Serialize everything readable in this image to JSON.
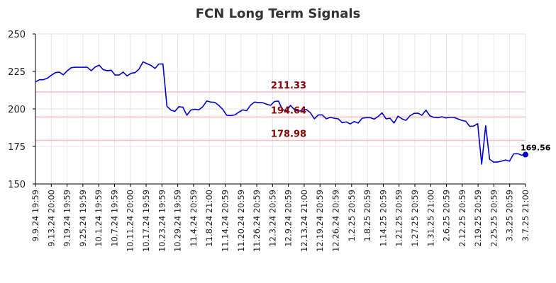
{
  "chart_data": {
    "type": "line",
    "title": "FCN Long Term Signals",
    "xlabel": "",
    "ylabel": "",
    "ylim": [
      150,
      250
    ],
    "yticks": [
      150,
      175,
      200,
      225,
      250
    ],
    "grid": true,
    "x_tick_labels": [
      "9.9.24 19:59",
      "9.13.24 20:00",
      "9.19.24 19:59",
      "9.25.24 19:59",
      "10.1.24 19:59",
      "10.7.24 19:59",
      "10.11.24 20:00",
      "10.17.24 19:59",
      "10.23.24 19:59",
      "10.29.24 19:59",
      "11.4.24 20:59",
      "11.8.24 21:00",
      "11.14.24 20:59",
      "11.20.24 20:59",
      "11.26.24 20:59",
      "12.3.24 20:59",
      "12.9.24 20:59",
      "12.13.24 21:00",
      "12.19.24 20:59",
      "12.26.24 20:59",
      "1.2.25 20:59",
      "1.8.25 20:59",
      "1.14.25 20:59",
      "1.21.25 20:59",
      "1.27.25 20:59",
      "1.31.25 21:00",
      "2.6.25 20:59",
      "2.12.25 20:59",
      "2.19.25 20:59",
      "2.25.25 20:59",
      "3.3.25 20:59",
      "3.7.25 21:00"
    ],
    "series": [
      {
        "color": "#0000cc",
        "values": [
          218,
          219.5,
          219.5,
          220.5,
          222.5,
          224.2,
          224.5,
          222.8,
          225.5,
          227.5,
          227.8,
          227.8,
          227.8,
          227.8,
          225.5,
          228,
          229.2,
          226.2,
          225.5,
          225.8,
          222.6,
          222.6,
          224.6,
          222,
          223.8,
          224.2,
          226.6,
          231.4,
          230.2,
          229,
          227,
          230,
          230,
          201.8,
          199.2,
          198.4,
          201.5,
          201.2,
          195.8,
          199.3,
          199.8,
          199.4,
          201.5,
          205.3,
          204.6,
          204.4,
          202.4,
          199.8,
          195.8,
          195.6,
          196,
          197.8,
          199.4,
          198.8,
          202.6,
          204.6,
          204.2,
          204.2,
          203.2,
          202.4,
          205,
          205.2,
          199.6,
          198.6,
          202.4,
          199.6,
          198.4,
          199.2,
          199.6,
          197.5,
          193.4,
          196,
          196,
          193.4,
          194.4,
          193.8,
          193.4,
          190.8,
          191.4,
          190,
          191.6,
          190.6,
          193.8,
          194.2,
          194.2,
          193.2,
          195,
          197.4,
          193.4,
          193.8,
          190.6,
          195.2,
          193.4,
          192.4,
          195.4,
          197,
          197.2,
          195.8,
          199.2,
          195.4,
          194.4,
          194.2,
          194.8,
          194,
          194.4,
          194.4,
          193.4,
          192.4,
          191.8,
          188.4,
          188.6,
          190.2,
          163.2,
          188.8,
          166.4,
          164.6,
          164.6,
          165.2,
          166,
          165.2,
          170,
          170.2,
          169.2,
          169.56
        ]
      }
    ],
    "levels": [
      {
        "value": 211.33,
        "label": "211.33",
        "line_color": "#ffbbbb",
        "label_color": "#880000"
      },
      {
        "value": 194.64,
        "label": "194.64",
        "line_color": "#ffbbbb",
        "label_color": "#880000"
      },
      {
        "value": 178.98,
        "label": "178.98",
        "line_color": "#ffbbbb",
        "label_color": "#880000"
      }
    ],
    "last_point": {
      "value": 169.56,
      "label": "169.56",
      "color": "#0000cc"
    }
  }
}
